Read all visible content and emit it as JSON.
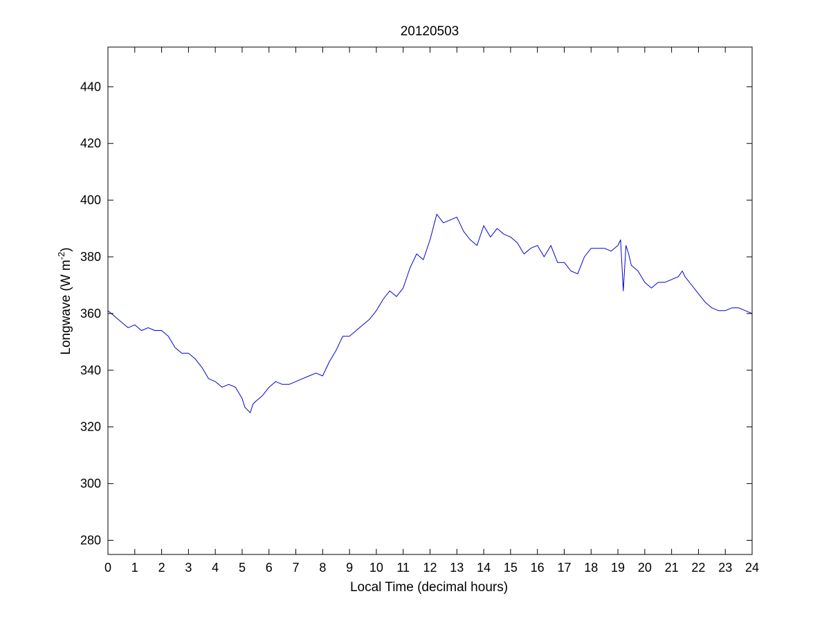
{
  "chart_data": {
    "type": "line",
    "title": "20120503",
    "xlabel": "Local Time (decimal hours)",
    "ylabel": "Longwave (W m",
    "ylabel_exponent": "-2",
    "ylabel_suffix": ")",
    "xlim": [
      0,
      24
    ],
    "ylim": [
      275,
      454
    ],
    "xticks": [
      0,
      1,
      2,
      3,
      4,
      5,
      6,
      7,
      8,
      9,
      10,
      11,
      12,
      13,
      14,
      15,
      16,
      17,
      18,
      19,
      20,
      21,
      22,
      23,
      24
    ],
    "yticks": [
      280,
      300,
      320,
      340,
      360,
      380,
      400,
      420,
      440
    ],
    "grid": false,
    "legend": "none",
    "line_color": "#0000cc",
    "series": [
      {
        "x": [
          0,
          0.25,
          0.5,
          0.75,
          1,
          1.25,
          1.5,
          1.75,
          2,
          2.25,
          2.5,
          2.75,
          3,
          3.25,
          3.5,
          3.75,
          4,
          4.25,
          4.5,
          4.75,
          5,
          5.1,
          5.2,
          5.3,
          5.4,
          5.5,
          5.75,
          6,
          6.25,
          6.5,
          6.75,
          7,
          7.25,
          7.5,
          7.75,
          8,
          8.25,
          8.5,
          8.75,
          9,
          9.25,
          9.5,
          9.75,
          10,
          10.25,
          10.5,
          10.75,
          11,
          11.25,
          11.5,
          11.75,
          12,
          12.25,
          12.5,
          12.75,
          13,
          13.25,
          13.5,
          13.75,
          14,
          14.25,
          14.5,
          14.75,
          15,
          15.25,
          15.5,
          15.75,
          16,
          16.25,
          16.5,
          16.75,
          17,
          17.25,
          17.5,
          17.75,
          18,
          18.25,
          18.5,
          18.75,
          19,
          19.1,
          19.2,
          19.3,
          19.4,
          19.5,
          19.75,
          20,
          20.25,
          20.5,
          20.75,
          21,
          21.25,
          21.4,
          21.5,
          21.75,
          22,
          22.25,
          22.5,
          22.75,
          23,
          23.25,
          23.5,
          23.75,
          24
        ],
        "y": [
          361,
          359,
          357,
          355,
          356,
          354,
          355,
          354,
          354,
          352,
          348,
          346,
          346,
          344,
          341,
          337,
          336,
          334,
          335,
          334,
          330,
          327,
          326,
          325,
          328,
          329,
          331,
          334,
          336,
          335,
          335,
          336,
          337,
          338,
          339,
          338,
          343,
          347,
          352,
          352,
          354,
          356,
          358,
          361,
          365,
          368,
          366,
          369,
          376,
          381,
          379,
          386,
          395,
          392,
          393,
          394,
          389,
          386,
          384,
          391,
          387,
          390,
          388,
          387,
          385,
          381,
          383,
          384,
          380,
          384,
          378,
          378,
          375,
          374,
          380,
          383,
          383,
          383,
          382,
          384,
          386,
          368,
          384,
          381,
          377,
          375,
          371,
          369,
          371,
          371,
          372,
          373,
          375,
          373,
          370,
          367,
          364,
          362,
          361,
          361,
          362,
          362,
          361,
          360
        ]
      }
    ]
  }
}
